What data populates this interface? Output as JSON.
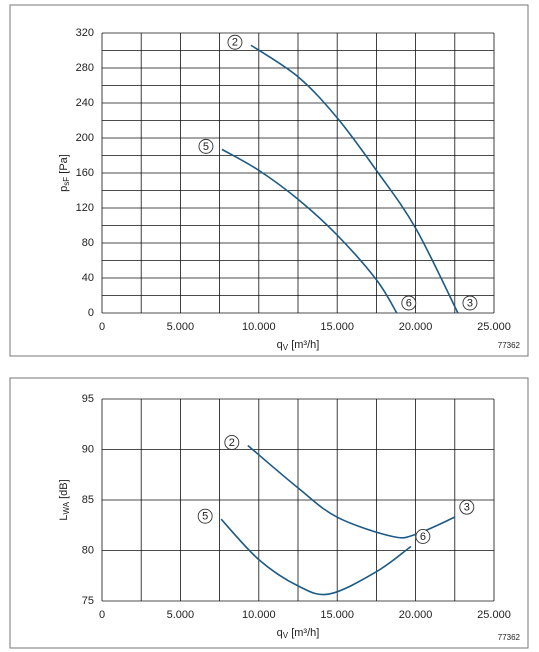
{
  "chart_data": [
    {
      "type": "line",
      "x_label": [
        "q",
        "V",
        " [m³/h]"
      ],
      "y_label": [
        "p",
        "sF",
        " [Pa]"
      ],
      "note": "77362",
      "xlim": [
        0,
        25000
      ],
      "xticks": [
        0,
        {
          "value": 5000,
          "label": "5.000"
        },
        {
          "value": 10000,
          "label": "10.000"
        },
        {
          "value": 15000,
          "label": "15.000"
        },
        {
          "value": 20000,
          "label": "20.000"
        },
        {
          "value": 25000,
          "label": "25.000"
        }
      ],
      "ylim": [
        0,
        320
      ],
      "yticks": [
        0,
        40,
        80,
        120,
        160,
        200,
        240,
        280,
        320
      ],
      "grid": true,
      "minor_grid": [
        "x",
        "y"
      ],
      "series": [
        {
          "labels": [
            "2",
            "3"
          ],
          "color": "#1c5a86",
          "x": [
            9500,
            12500,
            15000,
            17500,
            20000,
            22700
          ],
          "values": [
            306,
            270,
            223,
            163,
            97,
            0
          ]
        },
        {
          "labels": [
            "5",
            "6"
          ],
          "color": "#1c5a86",
          "x": [
            7650,
            10000,
            12500,
            15000,
            17500,
            18800
          ],
          "values": [
            187,
            163,
            130,
            89,
            38,
            0
          ]
        }
      ]
    },
    {
      "type": "line",
      "x_label": [
        "q",
        "V",
        " [m³/h]"
      ],
      "y_label": [
        "L",
        "WA",
        " [dB]"
      ],
      "note": "77362",
      "xlim": [
        0,
        25000
      ],
      "xticks": [
        0,
        {
          "value": 5000,
          "label": "5.000"
        },
        {
          "value": 10000,
          "label": "10.000"
        },
        {
          "value": 15000,
          "label": "15.000"
        },
        {
          "value": 20000,
          "label": "20.000"
        },
        {
          "value": 25000,
          "label": "25.000"
        }
      ],
      "ylim": [
        75,
        95
      ],
      "yticks": [
        75,
        80,
        85,
        90,
        95
      ],
      "grid": true,
      "minor_grid": [
        "x"
      ],
      "series": [
        {
          "labels": [
            "2",
            "3"
          ],
          "color": "#1c5a86",
          "x": [
            9300,
            12500,
            15000,
            18500,
            20000,
            22500
          ],
          "values": [
            90.4,
            86.2,
            83.3,
            81.4,
            81.6,
            83.3
          ]
        },
        {
          "labels": [
            "5",
            "6"
          ],
          "color": "#1c5a86",
          "x": [
            7600,
            10000,
            12500,
            14500,
            17500,
            19700
          ],
          "values": [
            83.1,
            79.1,
            76.5,
            75.7,
            77.9,
            80.4
          ]
        }
      ]
    }
  ]
}
